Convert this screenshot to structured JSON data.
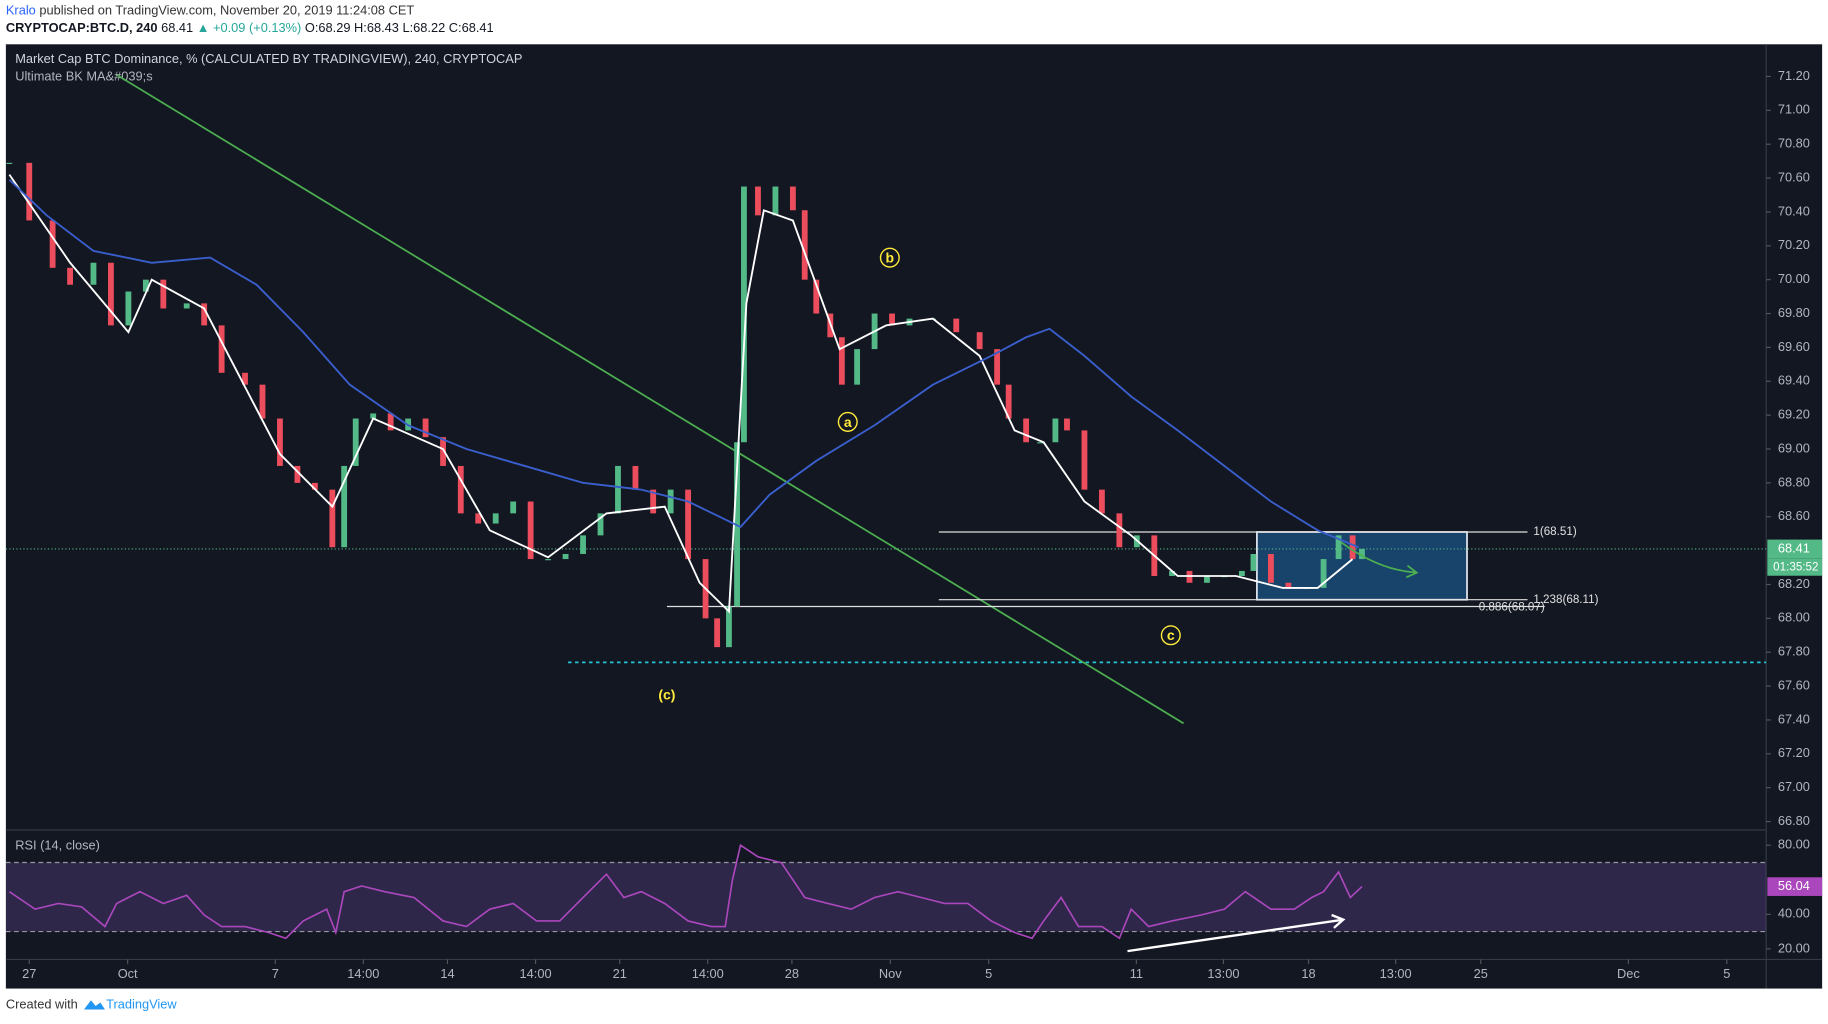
{
  "header": {
    "author": "Kralo",
    "published": "published on TradingView.com, November 20, 2019 11:24:08 CET",
    "symbol": "CRYPTOCAP:BTC.D, 240",
    "last": "68.41",
    "change": "▲ +0.09 (+0.13%)",
    "ohlc": "O:68.29 H:68.43 L:68.22 C:68.41"
  },
  "footer": {
    "created": "Created with",
    "brand": "TradingView"
  },
  "chart_data": {
    "type": "candlestick",
    "title": "Market Cap BTC Dominance, % (CALCULATED BY TRADINGVIEW), 240, CRYPTOCAP",
    "subtitle": "Ultimate BK MA&#039;s",
    "xlim": [
      -0.95,
      70.6
    ],
    "xticks": [
      {
        "value": 0,
        "label": "27"
      },
      {
        "value": 4,
        "label": "Oct"
      },
      {
        "value": 10,
        "label": "7"
      },
      {
        "value": 13.58,
        "label": "14:00"
      },
      {
        "value": 17,
        "label": "14"
      },
      {
        "value": 20.58,
        "label": "14:00"
      },
      {
        "value": 24,
        "label": "21"
      },
      {
        "value": 27.58,
        "label": "14:00"
      },
      {
        "value": 31,
        "label": "28"
      },
      {
        "value": 35,
        "label": "Nov"
      },
      {
        "value": 39,
        "label": "5"
      },
      {
        "value": 45,
        "label": "11"
      },
      {
        "value": 48.54,
        "label": "13:00"
      },
      {
        "value": 52,
        "label": "18"
      },
      {
        "value": 55.54,
        "label": "13:00"
      },
      {
        "value": 59,
        "label": "25"
      },
      {
        "value": 65,
        "label": "Dec"
      },
      {
        "value": 69,
        "label": "5"
      }
    ],
    "ylim": [
      66.75,
      71.39
    ],
    "yticks": [
      {
        "value": 66.8,
        "label": "66.80"
      },
      {
        "value": 67,
        "label": "67.00"
      },
      {
        "value": 67.2,
        "label": "67.20"
      },
      {
        "value": 67.4,
        "label": "67.40"
      },
      {
        "value": 67.6,
        "label": "67.60"
      },
      {
        "value": 67.8,
        "label": "67.80"
      },
      {
        "value": 68,
        "label": "68.00"
      },
      {
        "value": 68.2,
        "label": "68.20"
      },
      {
        "value": 68.6,
        "label": "68.60"
      },
      {
        "value": 68.8,
        "label": "68.80"
      },
      {
        "value": 69,
        "label": "69.00"
      },
      {
        "value": 69.2,
        "label": "69.20"
      },
      {
        "value": 69.4,
        "label": "69.40"
      },
      {
        "value": 69.6,
        "label": "69.60"
      },
      {
        "value": 69.8,
        "label": "69.80"
      },
      {
        "value": 70,
        "label": "70.00"
      },
      {
        "value": 70.2,
        "label": "70.20"
      },
      {
        "value": 70.4,
        "label": "70.40"
      },
      {
        "value": 70.6,
        "label": "70.60"
      },
      {
        "value": 70.8,
        "label": "70.80"
      },
      {
        "value": 71,
        "label": "71.00"
      },
      {
        "value": 71.2,
        "label": "71.20"
      }
    ],
    "grid": false,
    "up_color": "#53b987",
    "down_color": "#eb4d5c",
    "last_price": 68.41,
    "countdown": "01:35:52",
    "series": [
      {
        "style": "candles",
        "x": [
          -0.81,
          0,
          0.95,
          1.66,
          2.61,
          3.32,
          4.03,
          4.74,
          5.45,
          6.4,
          7.11,
          7.82,
          8.77,
          9.48,
          10.19,
          10.9,
          11.61,
          12.32,
          12.8,
          13.27,
          13.98,
          14.69,
          15.4,
          16.11,
          16.82,
          17.54,
          18.25,
          18.96,
          19.67,
          20.38,
          21.09,
          21.8,
          22.51,
          23.22,
          23.93,
          24.64,
          25.36,
          26.07,
          26.78,
          27.49,
          27.96,
          28.44,
          28.77,
          29.05,
          29.62,
          30.33,
          31.04,
          31.52,
          31.99,
          32.56,
          33.03,
          33.65,
          34.36,
          35.07,
          35.78,
          36.73,
          37.68,
          38.63,
          39.34,
          39.81,
          40.52,
          41.09,
          41.71,
          42.18,
          42.89,
          43.6,
          44.31,
          45.02,
          45.73,
          46.45,
          47.16,
          47.87,
          48.58,
          49.29,
          49.76,
          50.47,
          51.18,
          51.9,
          52.61,
          53.22,
          53.79,
          54.17
        ],
        "values": [
          70.69,
          70.35,
          70.07,
          69.97,
          70.1,
          69.73,
          69.93,
          70.0,
          69.83,
          69.86,
          69.73,
          69.45,
          69.38,
          69.18,
          68.9,
          68.8,
          68.76,
          68.42,
          68.9,
          69.18,
          69.21,
          69.11,
          69.18,
          69.07,
          68.9,
          68.62,
          68.56,
          68.62,
          68.69,
          68.35,
          68.35,
          68.38,
          68.49,
          68.62,
          68.9,
          68.76,
          68.62,
          68.76,
          68.35,
          68.0,
          67.83,
          68.07,
          69.04,
          70.55,
          70.38,
          70.55,
          70.41,
          70.0,
          69.8,
          69.66,
          69.38,
          69.59,
          69.8,
          69.73,
          69.77,
          69.77,
          69.69,
          69.59,
          69.38,
          69.18,
          69.04,
          69.04,
          69.18,
          69.11,
          68.76,
          68.62,
          68.42,
          68.49,
          68.25,
          68.28,
          68.21,
          68.25,
          68.25,
          68.28,
          68.38,
          68.21,
          68.18,
          68.18,
          68.35,
          68.49,
          68.35,
          68.41
        ]
      },
      {
        "style": "line",
        "color": "#ffffff",
        "x": [
          -0.81,
          1.66,
          4.03,
          4.98,
          7.11,
          10.19,
          12.32,
          13.98,
          16.82,
          18.72,
          21.09,
          23.46,
          25.83,
          27.25,
          28.44,
          29.15,
          29.86,
          31.04,
          32.94,
          34.83,
          36.73,
          38.63,
          40.05,
          41.23,
          42.89,
          44.79,
          46.68,
          49.05,
          50.95,
          52.37,
          53.79
        ],
        "values": [
          70.62,
          70.1,
          69.69,
          70.0,
          69.83,
          68.97,
          68.66,
          69.18,
          69.0,
          68.52,
          68.36,
          68.62,
          68.66,
          68.21,
          68.04,
          69.86,
          70.41,
          70.35,
          69.59,
          69.73,
          69.77,
          69.55,
          69.11,
          69.04,
          68.69,
          68.49,
          68.25,
          68.25,
          68.18,
          68.18,
          68.35
        ]
      },
      {
        "style": "line",
        "color": "#3a5fcd",
        "x": [
          -0.81,
          0.71,
          2.61,
          4.98,
          7.35,
          9.24,
          11.14,
          13.03,
          15.4,
          17.77,
          20.14,
          22.51,
          24.88,
          26.78,
          28.2,
          28.91,
          30.09,
          31.99,
          34.36,
          36.73,
          39.1,
          40.52,
          41.47,
          42.89,
          44.79,
          46.68,
          48.58,
          50.47,
          52.37,
          54.03
        ],
        "values": [
          70.59,
          70.38,
          70.17,
          70.1,
          70.13,
          69.97,
          69.69,
          69.38,
          69.14,
          69.0,
          68.9,
          68.8,
          68.76,
          68.69,
          68.59,
          68.54,
          68.73,
          68.93,
          69.14,
          69.38,
          69.55,
          69.66,
          69.71,
          69.55,
          69.31,
          69.11,
          68.9,
          68.69,
          68.52,
          68.42
        ]
      }
    ],
    "annotations": {
      "trendline": {
        "color": "#4caf50",
        "x": [
          3.55,
          46.92
        ],
        "y": [
          71.21,
          67.38
        ]
      },
      "support": {
        "color": "#26c6da",
        "value": 67.74,
        "x": [
          21.9,
          70.6
        ]
      },
      "levels": [
        {
          "label": "1(68.51)",
          "value": 68.51,
          "x": [
            36.97,
            60.9
          ]
        },
        {
          "label": "1.238(68.11)",
          "value": 68.11,
          "x": [
            36.97,
            60.9
          ]
        },
        {
          "label": "0.886(68.07)",
          "value": 68.07,
          "x": [
            25.92,
            61.6
          ]
        }
      ],
      "box": {
        "x": [
          49.9,
          58.44
        ],
        "y": [
          68.11,
          68.51
        ]
      },
      "projection": {
        "color": "#4caf50",
        "x": [
          53.32,
          56.4
        ],
        "y": [
          68.45,
          68.27
        ]
      },
      "waves": [
        {
          "label": "(c)",
          "x": 25.92,
          "y": 67.55,
          "circled": false
        },
        {
          "label": "a",
          "x": 33.27,
          "y": 69.16,
          "circled": true
        },
        {
          "label": "b",
          "x": 34.98,
          "y": 70.13,
          "circled": true
        },
        {
          "label": "c",
          "x": 46.4,
          "y": 67.9,
          "circled": true
        }
      ]
    },
    "rsi": {
      "title": "RSI (14, close)",
      "color": "#ab47bc",
      "ylim": [
        13.9,
        88.8
      ],
      "yticks": [
        {
          "value": 20,
          "label": "20.00"
        },
        {
          "value": 40,
          "label": "40.00"
        },
        {
          "value": 80,
          "label": "80.00"
        }
      ],
      "levels": [
        70,
        30
      ],
      "last_label": "56.04",
      "x": [
        -0.81,
        0.24,
        1.18,
        2.13,
        3.08,
        3.55,
        4.5,
        5.45,
        6.4,
        7.11,
        7.82,
        8.77,
        9.72,
        10.43,
        11.14,
        12.09,
        12.46,
        12.8,
        13.51,
        14.45,
        15.64,
        16.82,
        17.77,
        18.72,
        19.67,
        20.62,
        21.56,
        22.51,
        23.46,
        24.17,
        24.88,
        25.83,
        26.78,
        27.73,
        28.29,
        28.58,
        28.91,
        29.62,
        30.57,
        31.52,
        32.46,
        33.41,
        34.36,
        35.31,
        36.26,
        37.2,
        38.15,
        39.1,
        40.05,
        40.76,
        41.23,
        41.94,
        42.65,
        43.6,
        44.31,
        44.79,
        45.5,
        46.45,
        47.63,
        48.58,
        49.43,
        50.47,
        51.42,
        52.13,
        52.61,
        53.22,
        53.7,
        54.17
      ],
      "values": [
        53.1,
        43.0,
        46.3,
        44.3,
        32.9,
        46.3,
        53.1,
        46.3,
        51.0,
        39.6,
        32.9,
        32.9,
        29.5,
        26.1,
        36.2,
        43.0,
        29.5,
        53.1,
        56.4,
        53.1,
        49.7,
        36.2,
        32.9,
        43.0,
        46.3,
        36.2,
        36.2,
        49.7,
        63.2,
        49.7,
        53.1,
        46.3,
        36.2,
        32.9,
        32.9,
        59.8,
        80.0,
        73.3,
        69.9,
        49.7,
        46.3,
        43.0,
        49.7,
        53.1,
        49.7,
        46.3,
        46.3,
        36.2,
        29.5,
        26.1,
        36.2,
        49.7,
        32.9,
        32.9,
        26.1,
        43.0,
        32.9,
        36.2,
        39.6,
        43.0,
        53.1,
        43.0,
        43.0,
        49.7,
        53.1,
        64.5,
        49.7,
        56.04
      ],
      "divergence": {
        "color": "#ffffff",
        "x": [
          44.64,
          53.41
        ],
        "y": [
          18.7,
          36.9
        ]
      }
    }
  }
}
